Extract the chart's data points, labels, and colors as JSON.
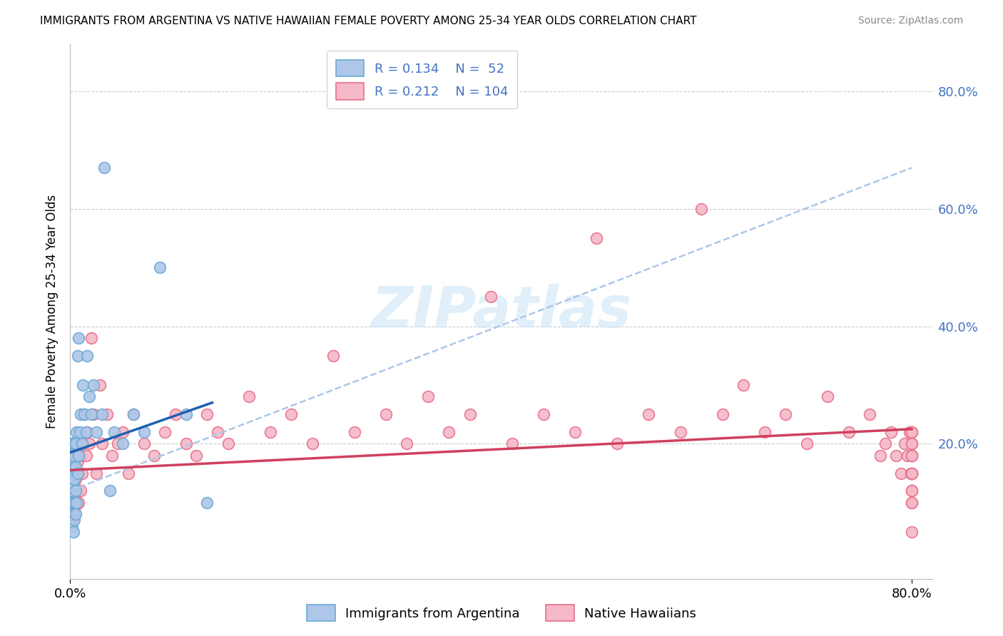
{
  "title": "IMMIGRANTS FROM ARGENTINA VS NATIVE HAWAIIAN FEMALE POVERTY AMONG 25-34 YEAR OLDS CORRELATION CHART",
  "source": "Source: ZipAtlas.com",
  "ylabel": "Female Poverty Among 25-34 Year Olds",
  "xlim": [
    0.0,
    0.82
  ],
  "ylim": [
    -0.03,
    0.88
  ],
  "yticks_right": [
    0.2,
    0.4,
    0.6,
    0.8
  ],
  "argentina_fill": "#aec6e8",
  "argentina_edge": "#6aaad4",
  "native_hawaiian_fill": "#f5b8c8",
  "native_hawaiian_edge": "#e8708a",
  "argentina_line_color": "#2060b0",
  "native_hawaiian_line_color": "#d04060",
  "dashed_line_color": "#aec6e8",
  "legend_R1": "0.134",
  "legend_N1": "52",
  "legend_R2": "0.212",
  "legend_N2": "104",
  "watermark": "ZIPatlas",
  "background_color": "#ffffff",
  "grid_color": "#cccccc",
  "right_axis_color": "#4472c4",
  "arg_x": [
    0.001,
    0.001,
    0.001,
    0.001,
    0.002,
    0.002,
    0.002,
    0.002,
    0.002,
    0.002,
    0.002,
    0.003,
    0.003,
    0.003,
    0.003,
    0.003,
    0.003,
    0.004,
    0.004,
    0.004,
    0.004,
    0.005,
    0.005,
    0.005,
    0.005,
    0.006,
    0.006,
    0.007,
    0.007,
    0.008,
    0.008,
    0.009,
    0.01,
    0.011,
    0.012,
    0.013,
    0.015,
    0.016,
    0.018,
    0.02,
    0.022,
    0.025,
    0.03,
    0.032,
    0.038,
    0.042,
    0.05,
    0.06,
    0.07,
    0.085,
    0.11,
    0.13
  ],
  "arg_y": [
    0.1,
    0.12,
    0.15,
    0.18,
    0.06,
    0.08,
    0.1,
    0.12,
    0.15,
    0.17,
    0.2,
    0.05,
    0.08,
    0.1,
    0.13,
    0.16,
    0.2,
    0.07,
    0.1,
    0.14,
    0.18,
    0.08,
    0.12,
    0.16,
    0.2,
    0.1,
    0.22,
    0.15,
    0.35,
    0.18,
    0.38,
    0.22,
    0.25,
    0.2,
    0.3,
    0.25,
    0.22,
    0.35,
    0.28,
    0.25,
    0.3,
    0.22,
    0.25,
    0.67,
    0.12,
    0.22,
    0.2,
    0.25,
    0.22,
    0.5,
    0.25,
    0.1
  ],
  "nh_x": [
    0.001,
    0.001,
    0.001,
    0.002,
    0.002,
    0.002,
    0.002,
    0.003,
    0.003,
    0.003,
    0.003,
    0.004,
    0.004,
    0.004,
    0.005,
    0.005,
    0.005,
    0.006,
    0.006,
    0.007,
    0.007,
    0.008,
    0.008,
    0.009,
    0.01,
    0.01,
    0.011,
    0.012,
    0.013,
    0.015,
    0.016,
    0.018,
    0.02,
    0.022,
    0.025,
    0.028,
    0.03,
    0.035,
    0.04,
    0.045,
    0.05,
    0.055,
    0.06,
    0.07,
    0.08,
    0.09,
    0.1,
    0.11,
    0.12,
    0.13,
    0.14,
    0.15,
    0.17,
    0.19,
    0.21,
    0.23,
    0.25,
    0.27,
    0.3,
    0.32,
    0.34,
    0.36,
    0.38,
    0.4,
    0.42,
    0.45,
    0.48,
    0.5,
    0.52,
    0.55,
    0.58,
    0.6,
    0.62,
    0.64,
    0.66,
    0.68,
    0.7,
    0.72,
    0.74,
    0.76,
    0.77,
    0.775,
    0.78,
    0.785,
    0.79,
    0.793,
    0.796,
    0.798,
    0.799,
    0.8,
    0.8,
    0.8,
    0.8,
    0.8,
    0.8,
    0.8,
    0.8,
    0.8,
    0.8,
    0.8,
    0.8,
    0.8,
    0.8,
    0.8
  ],
  "nh_y": [
    0.1,
    0.12,
    0.15,
    0.08,
    0.1,
    0.13,
    0.16,
    0.07,
    0.1,
    0.13,
    0.18,
    0.09,
    0.12,
    0.16,
    0.1,
    0.14,
    0.18,
    0.1,
    0.15,
    0.12,
    0.17,
    0.1,
    0.15,
    0.2,
    0.12,
    0.18,
    0.15,
    0.2,
    0.25,
    0.18,
    0.22,
    0.2,
    0.38,
    0.25,
    0.15,
    0.3,
    0.2,
    0.25,
    0.18,
    0.2,
    0.22,
    0.15,
    0.25,
    0.2,
    0.18,
    0.22,
    0.25,
    0.2,
    0.18,
    0.25,
    0.22,
    0.2,
    0.28,
    0.22,
    0.25,
    0.2,
    0.35,
    0.22,
    0.25,
    0.2,
    0.28,
    0.22,
    0.25,
    0.45,
    0.2,
    0.25,
    0.22,
    0.55,
    0.2,
    0.25,
    0.22,
    0.6,
    0.25,
    0.3,
    0.22,
    0.25,
    0.2,
    0.28,
    0.22,
    0.25,
    0.18,
    0.2,
    0.22,
    0.18,
    0.15,
    0.2,
    0.18,
    0.22,
    0.15,
    0.18,
    0.2,
    0.22,
    0.15,
    0.18,
    0.1,
    0.12,
    0.15,
    0.2,
    0.18,
    0.22,
    0.15,
    0.1,
    0.12,
    0.05
  ],
  "arg_line_x0": 0.0,
  "arg_line_x1": 0.135,
  "arg_line_y0": 0.185,
  "arg_line_y1": 0.27,
  "dash_line_x0": 0.0,
  "dash_line_x1": 0.8,
  "dash_line_y0": 0.12,
  "dash_line_y1": 0.67,
  "nh_line_x0": 0.0,
  "nh_line_x1": 0.8,
  "nh_line_y0": 0.155,
  "nh_line_y1": 0.225
}
